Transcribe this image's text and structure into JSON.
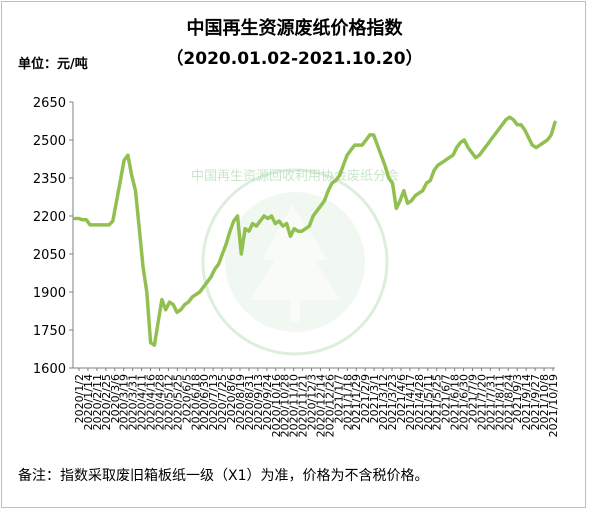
{
  "chart_data": {
    "type": "line",
    "title": "中国再生资源废纸价格指数",
    "subtitle": "（2020.01.02-2021.10.20）",
    "unit_label": "单位：元/吨",
    "ylim": [
      1600,
      2650
    ],
    "yticks": [
      1600,
      1750,
      1900,
      2050,
      2200,
      2350,
      2500,
      2650
    ],
    "grid": "none",
    "legend": "none",
    "xtick_labels": [
      "2020/1/2",
      "2020/1/14",
      "2020/2/11",
      "2020/2/25",
      "2020/3/6",
      "2020/3/19",
      "2020/3/31",
      "2020/4/11",
      "2020/4/16",
      "2020/4/28",
      "2020/5/12",
      "2020/5/25",
      "2020/6/5",
      "2020/6/18",
      "2020/6/30",
      "2020/7/13",
      "2020/7/25",
      "2020/8/6",
      "2020/8/19",
      "2020/8/31",
      "2020/9/13",
      "2020/9/24",
      "2020/10/16",
      "2020/10/28",
      "2020/11/10",
      "2020/11/21",
      "2020/12/3",
      "2020/12/14",
      "2020/12/26",
      "2021/1/7",
      "2021/1/18",
      "2021/1/29",
      "2021/2/9",
      "2021/3/1",
      "2021/3/12",
      "2021/3/23",
      "2021/4/6",
      "2021/4/17",
      "2021/4/28",
      "2021/5/11",
      "2021/5/25",
      "2021/6/7",
      "2021/6/18",
      "2021/6/30",
      "2021/7/9",
      "2021/7/20",
      "2021/7/31",
      "2021/8/11",
      "2021/8/24",
      "2021/9/3",
      "2021/9/14",
      "2021/9/27",
      "2021/10/8",
      "2021/10/19"
    ],
    "series": [
      {
        "color": "#92c050",
        "values": [
          2190,
          2190,
          2185,
          2185,
          2165,
          2165,
          2165,
          2165,
          2165,
          2165,
          2180,
          2260,
          2340,
          2420,
          2440,
          2360,
          2300,
          2150,
          2000,
          1900,
          1700,
          1690,
          1780,
          1870,
          1830,
          1860,
          1850,
          1820,
          1830,
          1850,
          1860,
          1880,
          1890,
          1900,
          1920,
          1940,
          1960,
          1990,
          2010,
          2050,
          2090,
          2140,
          2180,
          2200,
          2050,
          2150,
          2140,
          2170,
          2160,
          2180,
          2200,
          2190,
          2200,
          2170,
          2180,
          2160,
          2170,
          2120,
          2150,
          2140,
          2140,
          2150,
          2160,
          2200,
          2220,
          2240,
          2260,
          2300,
          2330,
          2340,
          2360,
          2400,
          2440,
          2460,
          2480,
          2480,
          2480,
          2500,
          2520,
          2520,
          2480,
          2440,
          2400,
          2350,
          2330,
          2230,
          2260,
          2300,
          2250,
          2260,
          2280,
          2290,
          2300,
          2330,
          2340,
          2380,
          2400,
          2410,
          2420,
          2430,
          2440,
          2470,
          2490,
          2500,
          2470,
          2450,
          2430,
          2440,
          2460,
          2480,
          2500,
          2520,
          2540,
          2560,
          2580,
          2590,
          2580,
          2560,
          2560,
          2540,
          2510,
          2480,
          2470,
          2480,
          2490,
          2500,
          2520,
          2570
        ]
      }
    ]
  },
  "watermark_text": "中国再生资源回收利用协会废纸分会",
  "note": "备注：指数采取废旧箱板纸一级（X1）为准，价格为不含税价格。"
}
